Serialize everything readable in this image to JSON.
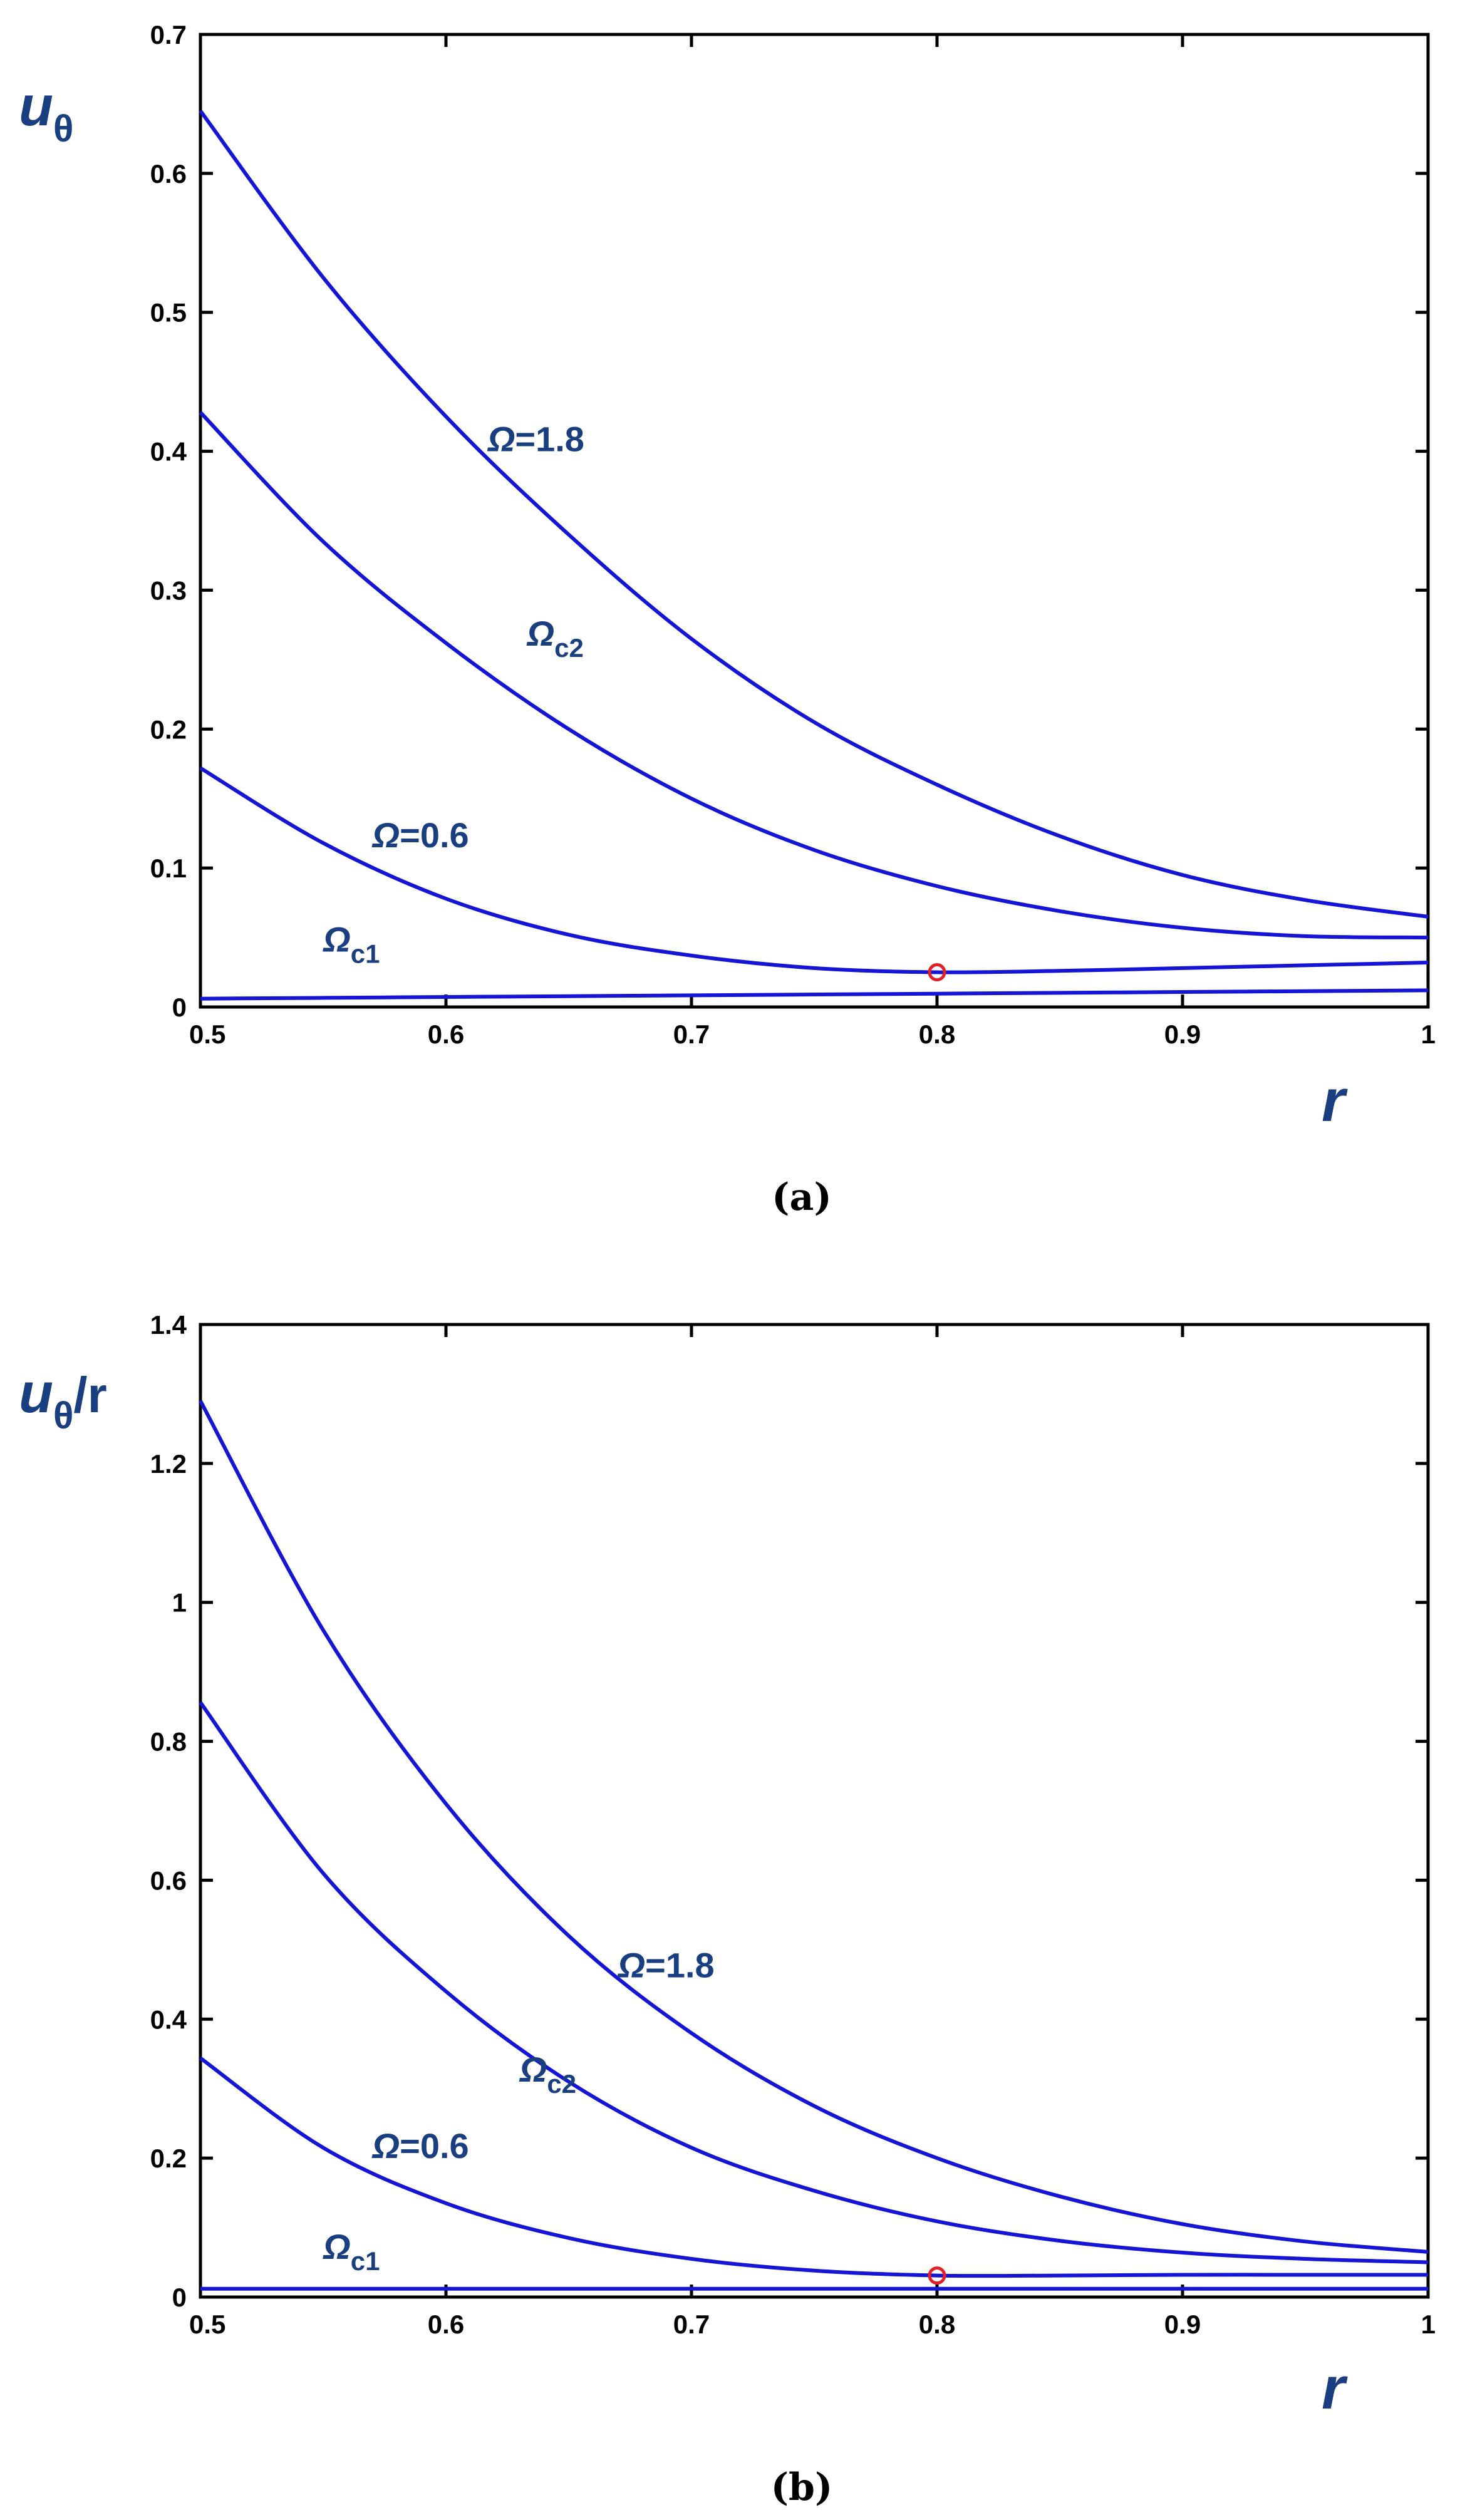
{
  "chart_data": [
    {
      "type": "line",
      "caption": "(a)",
      "ylabel": {
        "main": "u",
        "sub": "θ",
        "suffix": ""
      },
      "xlabel": "r",
      "xlim": [
        0.5,
        1.0
      ],
      "ylim": [
        0,
        0.7
      ],
      "xticks": [
        0.5,
        0.6,
        0.7,
        0.8,
        0.9,
        1.0
      ],
      "xtick_labels": [
        "0.5",
        "0.6",
        "0.7",
        "0.8",
        "0.9",
        "1"
      ],
      "yticks": [
        0,
        0.1,
        0.2,
        0.3,
        0.4,
        0.5,
        0.6,
        0.7
      ],
      "ytick_labels": [
        "0",
        "0.1",
        "0.2",
        "0.3",
        "0.4",
        "0.5",
        "0.6",
        "0.7"
      ],
      "grid": false,
      "line_color": "#1515d6",
      "marker_color": "#e0202a",
      "x": [
        0.5,
        0.55,
        0.6,
        0.65,
        0.7,
        0.75,
        0.8,
        0.85,
        0.9,
        0.95,
        1.0
      ],
      "series": [
        {
          "name": "Ω=1.8",
          "label": {
            "main": "Ω",
            "sub": "",
            "rest": "=1.8",
            "x": 0.617,
            "y": 0.4
          },
          "values": [
            0.645,
            0.525,
            0.425,
            0.34,
            0.265,
            0.205,
            0.16,
            0.123,
            0.095,
            0.077,
            0.065
          ]
        },
        {
          "name": "Ωc2",
          "label": {
            "main": "Ω",
            "sub": "c2",
            "rest": "",
            "x": 0.633,
            "y": 0.26
          },
          "values": [
            0.428,
            0.335,
            0.262,
            0.2,
            0.15,
            0.113,
            0.087,
            0.069,
            0.057,
            0.051,
            0.05
          ]
        },
        {
          "name": "Ω=0.6",
          "label": {
            "main": "Ω",
            "sub": "",
            "rest": "=0.6",
            "x": 0.57,
            "y": 0.115
          },
          "values": [
            0.172,
            0.118,
            0.078,
            0.052,
            0.037,
            0.028,
            0.025,
            0.026,
            0.028,
            0.03,
            0.032
          ]
        },
        {
          "name": "Ωc1",
          "label": {
            "main": "Ω",
            "sub": "c1",
            "rest": "",
            "x": 0.55,
            "y": 0.04
          },
          "values": [
            0.006,
            0.0066,
            0.0072,
            0.0078,
            0.0084,
            0.009,
            0.0096,
            0.0102,
            0.0108,
            0.0114,
            0.012
          ]
        }
      ],
      "marker": {
        "x": 0.8,
        "y": 0.025,
        "shape": "open-circle"
      }
    },
    {
      "type": "line",
      "caption": "(b)",
      "ylabel": {
        "main": "u",
        "sub": "θ",
        "suffix": "/r"
      },
      "xlabel": "r",
      "xlim": [
        0.5,
        1.0
      ],
      "ylim": [
        0,
        1.4
      ],
      "xticks": [
        0.5,
        0.6,
        0.7,
        0.8,
        0.9,
        1.0
      ],
      "xtick_labels": [
        "0.5",
        "0.6",
        "0.7",
        "0.8",
        "0.9",
        "1"
      ],
      "yticks": [
        0,
        0.2,
        0.4,
        0.6,
        0.8,
        1.0,
        1.2,
        1.4
      ],
      "ytick_labels": [
        "0",
        "0.2",
        "0.4",
        "0.6",
        "0.8",
        "1",
        "1.2",
        "1.4"
      ],
      "grid": false,
      "line_color": "#1515d6",
      "marker_color": "#e0202a",
      "x": [
        0.5,
        0.55,
        0.6,
        0.65,
        0.7,
        0.75,
        0.8,
        0.85,
        0.9,
        0.95,
        1.0
      ],
      "series": [
        {
          "name": "Ω=1.8",
          "label": {
            "main": "Ω",
            "sub": "",
            "rest": "=1.8",
            "x": 0.67,
            "y": 0.46
          },
          "values": [
            1.29,
            0.96,
            0.71,
            0.52,
            0.38,
            0.275,
            0.2,
            0.145,
            0.105,
            0.08,
            0.065
          ]
        },
        {
          "name": "Ωc2",
          "label": {
            "main": "Ω",
            "sub": "c2",
            "rest": "",
            "x": 0.63,
            "y": 0.31
          },
          "values": [
            0.856,
            0.61,
            0.44,
            0.31,
            0.215,
            0.153,
            0.109,
            0.081,
            0.064,
            0.055,
            0.05
          ]
        },
        {
          "name": "Ω=0.6",
          "label": {
            "main": "Ω",
            "sub": "",
            "rest": "=0.6",
            "x": 0.57,
            "y": 0.2
          },
          "values": [
            0.344,
            0.215,
            0.135,
            0.085,
            0.055,
            0.038,
            0.031,
            0.031,
            0.032,
            0.032,
            0.032
          ]
        },
        {
          "name": "Ωc1",
          "label": {
            "main": "Ω",
            "sub": "c1",
            "rest": "",
            "x": 0.55,
            "y": 0.055
          },
          "values": [
            0.012,
            0.012,
            0.012,
            0.012,
            0.012,
            0.012,
            0.012,
            0.012,
            0.012,
            0.012,
            0.012
          ]
        }
      ],
      "marker": {
        "x": 0.8,
        "y": 0.031,
        "shape": "open-circle"
      }
    }
  ]
}
